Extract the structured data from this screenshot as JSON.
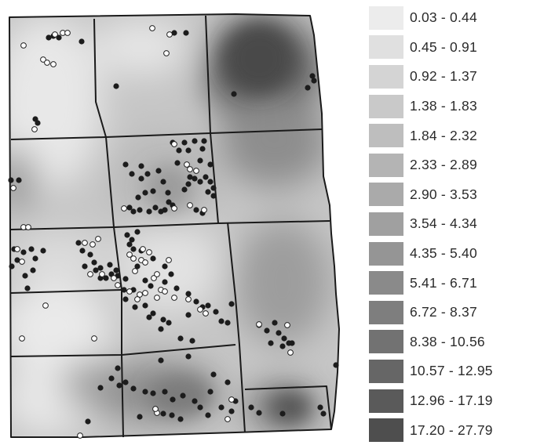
{
  "legend": {
    "classes": [
      {
        "label": "0.03 - 0.44",
        "color": "#ececec"
      },
      {
        "label": "0.45 - 0.91",
        "color": "#e0e0e0"
      },
      {
        "label": "0.92 - 1.37",
        "color": "#d4d4d4"
      },
      {
        "label": "1.38 - 1.83",
        "color": "#c9c9c9"
      },
      {
        "label": "1.84 - 2.32",
        "color": "#bebebe"
      },
      {
        "label": "2.33 - 2.89",
        "color": "#b4b4b4"
      },
      {
        "label": "2.90 - 3.53",
        "color": "#aaaaaa"
      },
      {
        "label": "3.54 - 4.34",
        "color": "#a0a0a0"
      },
      {
        "label": "4.35 - 5.40",
        "color": "#959595"
      },
      {
        "label": "5.41 - 6.71",
        "color": "#8a8a8a"
      },
      {
        "label": "6.72 - 8.37",
        "color": "#7e7e7e"
      },
      {
        "label": "8.38 - 10.56",
        "color": "#727272"
      },
      {
        "label": "10.57 - 12.95",
        "color": "#666666"
      },
      {
        "label": "12.96 - 17.19",
        "color": "#5a5a5a"
      },
      {
        "label": "17.20 - 27.79",
        "color": "#4e4e4e"
      }
    ]
  },
  "map": {
    "background_color": "#cccccc",
    "boundary_color": "#1a1a1a",
    "marker_dark_color": "#1c1c1c",
    "marker_light_color": "#ffffff"
  }
}
